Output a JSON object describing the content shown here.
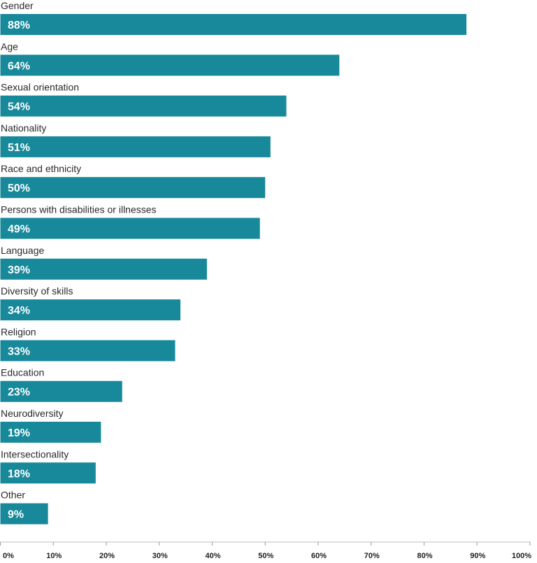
{
  "chart_data": {
    "type": "bar",
    "orientation": "horizontal",
    "title": "",
    "xlabel": "",
    "ylabel": "",
    "categories": [
      "Gender",
      "Age",
      "Sexual orientation",
      "Nationality",
      "Race and ethnicity",
      "Persons with disabilities or illnesses",
      "Language",
      "Diversity of skills",
      "Religion",
      "Education",
      "Neurodiversity",
      "Intersectionality",
      "Other"
    ],
    "values": [
      88,
      64,
      54,
      51,
      50,
      49,
      39,
      34,
      33,
      23,
      19,
      18,
      9
    ],
    "value_labels": [
      "88%",
      "64%",
      "54%",
      "51%",
      "50%",
      "49%",
      "39%",
      "34%",
      "33%",
      "23%",
      "19%",
      "18%",
      "9%"
    ],
    "xlim": [
      0,
      100
    ],
    "ticks": [
      0,
      10,
      20,
      30,
      40,
      50,
      60,
      70,
      80,
      90,
      100
    ],
    "tick_labels": [
      "0%",
      "10%",
      "20%",
      "30%",
      "40%",
      "50%",
      "60%",
      "70%",
      "80%",
      "90%",
      "100%"
    ],
    "grid": false,
    "legend": "none",
    "bar_color": "#17899a",
    "value_label_color": "#ffffff"
  }
}
